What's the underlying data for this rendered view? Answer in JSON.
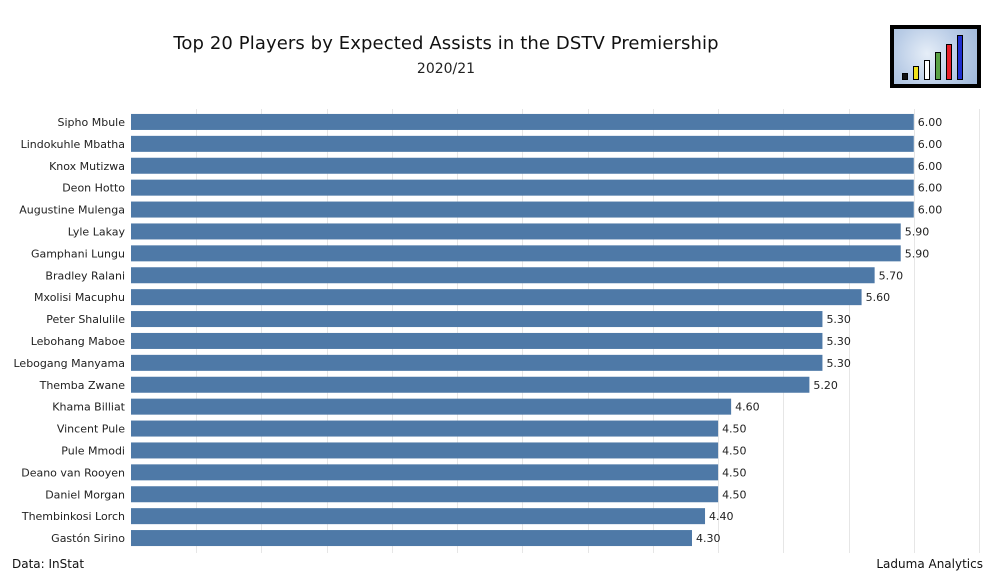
{
  "chart_data": {
    "type": "bar",
    "orientation": "horizontal",
    "title": "Top 20 Players by Expected Assists in the DSTV Premiership",
    "subtitle": "2020/21",
    "categories": [
      "Sipho Mbule",
      "Lindokuhle Mbatha",
      "Knox Mutizwa",
      "Deon Hotto",
      "Augustine Mulenga",
      "Lyle Lakay",
      "Gamphani Lungu",
      "Bradley Ralani",
      "Mxolisi Macuphu",
      "Peter Shalulile",
      "Lebohang Maboe",
      "Lebogang Manyama",
      "Themba Zwane",
      "Khama Billiat",
      "Vincent Pule",
      "Pule Mmodi",
      "Deano van Rooyen",
      "Daniel Morgan",
      "Thembinkosi Lorch",
      "Gastón Sirino"
    ],
    "values": [
      6.0,
      6.0,
      6.0,
      6.0,
      6.0,
      5.9,
      5.9,
      5.7,
      5.6,
      5.3,
      5.3,
      5.3,
      5.2,
      4.6,
      4.5,
      4.5,
      4.5,
      4.5,
      4.4,
      4.3
    ],
    "value_labels": [
      "6.00",
      "6.00",
      "6.00",
      "6.00",
      "6.00",
      "5.90",
      "5.90",
      "5.70",
      "5.60",
      "5.30",
      "5.30",
      "5.30",
      "5.20",
      "4.60",
      "4.50",
      "4.50",
      "4.50",
      "4.50",
      "4.40",
      "4.30"
    ],
    "xlim": [
      0,
      6.5
    ],
    "grid": "vertical",
    "bar_color": "#4e79a7",
    "grid_color": "#e6e6e6"
  },
  "footer": {
    "source": "Data: InStat",
    "credit": "Laduma Analytics"
  },
  "logo": {
    "icon": "bar-chart-logo-icon",
    "bar_colors": [
      "#111111",
      "#f2e21b",
      "#ffffff",
      "#5aa145",
      "#e8202a",
      "#1f2fcf"
    ],
    "bar_levels": [
      0.15,
      0.3,
      0.45,
      0.62,
      0.8,
      1.0
    ]
  }
}
